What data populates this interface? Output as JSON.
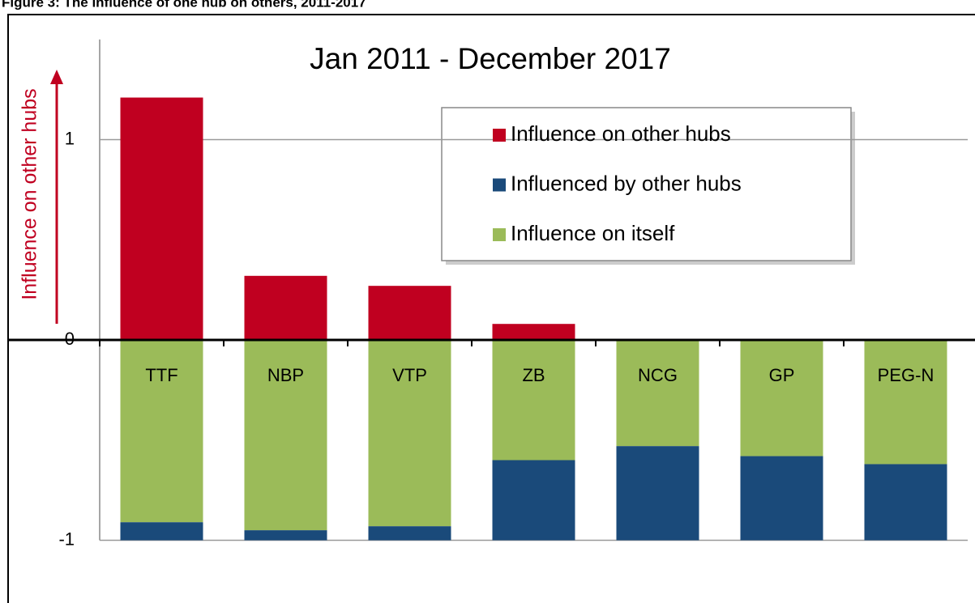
{
  "chart_data": {
    "type": "bar",
    "stacked": true,
    "caption": "Figure 3: The influence of one hub on others, 2011-2017",
    "title": "Jan 2011 - December 2017",
    "y_label": "Influence on other hubs",
    "categories": [
      "TTF",
      "NBP",
      "VTP",
      "ZB",
      "NCG",
      "GP",
      "PEG-N"
    ],
    "series": [
      {
        "name": "Influence on other hubs",
        "color": "#c00020",
        "values": [
          1.21,
          0.32,
          0.27,
          0.08,
          0,
          0,
          0
        ]
      },
      {
        "name": "Influenced by other hubs",
        "color": "#1a4a7a",
        "values": [
          -0.09,
          -0.05,
          -0.07,
          -0.4,
          -0.47,
          -0.42,
          -0.38
        ]
      },
      {
        "name": "Influence on itself",
        "color": "#9bbb59",
        "values": [
          -0.91,
          -0.95,
          -0.93,
          -0.6,
          -0.53,
          -0.58,
          -0.62
        ]
      }
    ],
    "ylim": [
      -1,
      1.5
    ],
    "yticks": [
      -1,
      0,
      1
    ],
    "grid": true
  }
}
